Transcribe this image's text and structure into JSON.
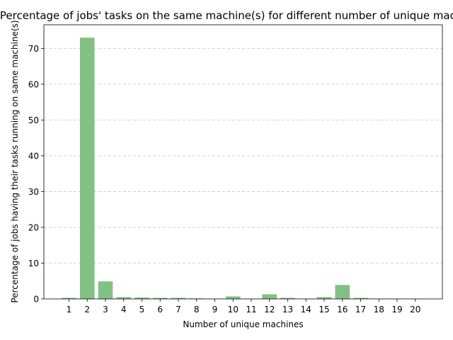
{
  "chart_data": {
    "type": "bar",
    "title": "Percentage of jobs' tasks on the same machine(s) for different number of unique machines",
    "xlabel": "Number of unique machines",
    "ylabel": "Percentage of jobs having their tasks running on same machine(s)",
    "categories": [
      "1",
      "2",
      "3",
      "4",
      "5",
      "6",
      "7",
      "8",
      "9",
      "10",
      "11",
      "12",
      "13",
      "14",
      "15",
      "16",
      "17",
      "18",
      "19",
      "20"
    ],
    "values": [
      0.3,
      73.0,
      4.9,
      0.5,
      0.4,
      0.3,
      0.3,
      0.15,
      0.1,
      0.7,
      0.1,
      1.3,
      0.3,
      0.1,
      0.5,
      3.9,
      0.3,
      0.1,
      0.1,
      0.05
    ],
    "ylim": [
      0,
      76.6
    ],
    "yticks": [
      0,
      10,
      20,
      30,
      40,
      50,
      60,
      70
    ],
    "grid": "y-dashed",
    "bar_color": "#81c184"
  }
}
